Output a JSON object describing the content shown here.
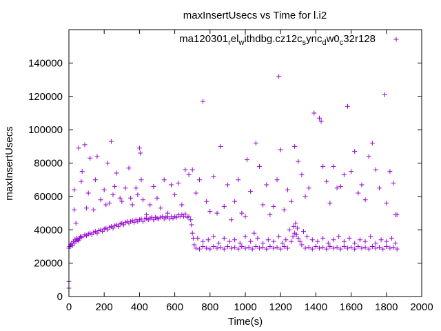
{
  "chart_data": {
    "type": "scatter",
    "title": "maxInsertUsecs vs Time for l.i2",
    "xlabel": "Time(s)",
    "ylabel": "maxInsertUsecs",
    "xlim": [
      0,
      2000
    ],
    "ylim": [
      0,
      160000
    ],
    "x_ticks": [
      0,
      200,
      400,
      600,
      800,
      1000,
      1200,
      1400,
      1600,
      1800,
      2000
    ],
    "x_tick_labels": [
      "0",
      "200",
      "400",
      "600",
      "800",
      "1000",
      "1200",
      "1400",
      "1600",
      "1800",
      "2000"
    ],
    "y_ticks": [
      0,
      20000,
      40000,
      60000,
      80000,
      100000,
      120000,
      140000
    ],
    "y_tick_labels": [
      "0",
      "20000",
      "40000",
      "60000",
      "80000",
      "100000",
      "120000",
      "140000"
    ],
    "legend": {
      "position": "top-right",
      "parts": [
        {
          "text": "ma120301",
          "sub": false
        },
        {
          "text": "r",
          "sub": true
        },
        {
          "text": "el",
          "sub": false
        },
        {
          "text": "w",
          "sub": true
        },
        {
          "text": "ithdbg.cz12c",
          "sub": false
        },
        {
          "text": "s",
          "sub": true
        },
        {
          "text": "ync",
          "sub": false
        },
        {
          "text": "d",
          "sub": true
        },
        {
          "text": "w0",
          "sub": false
        },
        {
          "text": "c",
          "sub": true
        },
        {
          "text": "32r128",
          "sub": false
        }
      ]
    },
    "series": [
      {
        "name": "ma120301_rel_withdbg.cz12c_sync_dw0_c32r128",
        "color": "#9400d3",
        "marker": "plus",
        "points": [
          [
            0,
            29000
          ],
          [
            0,
            5000
          ],
          [
            0,
            9000
          ],
          [
            5,
            30000
          ],
          [
            10,
            31000
          ],
          [
            15,
            32000
          ],
          [
            20,
            30500
          ],
          [
            25,
            33000
          ],
          [
            30,
            32000
          ],
          [
            35,
            34000
          ],
          [
            40,
            33000
          ],
          [
            45,
            35000
          ],
          [
            50,
            34000
          ],
          [
            55,
            33500
          ],
          [
            60,
            35000
          ],
          [
            65,
            36000
          ],
          [
            70,
            35500
          ],
          [
            80,
            36000
          ],
          [
            90,
            37000
          ],
          [
            100,
            36500
          ],
          [
            110,
            37500
          ],
          [
            120,
            38000
          ],
          [
            130,
            37000
          ],
          [
            140,
            38500
          ],
          [
            150,
            39000
          ],
          [
            160,
            38000
          ],
          [
            170,
            39500
          ],
          [
            180,
            40000
          ],
          [
            190,
            39000
          ],
          [
            200,
            40500
          ],
          [
            210,
            41000
          ],
          [
            220,
            40000
          ],
          [
            230,
            41500
          ],
          [
            240,
            42000
          ],
          [
            250,
            41000
          ],
          [
            260,
            42500
          ],
          [
            270,
            43000
          ],
          [
            280,
            42000
          ],
          [
            290,
            43500
          ],
          [
            300,
            44000
          ],
          [
            310,
            43000
          ],
          [
            320,
            44500
          ],
          [
            330,
            45000
          ],
          [
            340,
            44000
          ],
          [
            350,
            45000
          ],
          [
            360,
            45500
          ],
          [
            370,
            44500
          ],
          [
            380,
            46000
          ],
          [
            390,
            45000
          ],
          [
            400,
            46000
          ],
          [
            410,
            46500
          ],
          [
            420,
            45000
          ],
          [
            430,
            46500
          ],
          [
            440,
            47000
          ],
          [
            450,
            46000
          ],
          [
            460,
            47000
          ],
          [
            470,
            47500
          ],
          [
            480,
            46000
          ],
          [
            490,
            47500
          ],
          [
            500,
            47000
          ],
          [
            510,
            46500
          ],
          [
            520,
            47500
          ],
          [
            530,
            48000
          ],
          [
            540,
            46500
          ],
          [
            550,
            47500
          ],
          [
            560,
            48000
          ],
          [
            570,
            46500
          ],
          [
            580,
            48000
          ],
          [
            590,
            47000
          ],
          [
            600,
            48000
          ],
          [
            610,
            47500
          ],
          [
            620,
            49000
          ],
          [
            630,
            48000
          ],
          [
            640,
            49000
          ],
          [
            650,
            48000
          ],
          [
            660,
            49500
          ],
          [
            670,
            47500
          ],
          [
            680,
            48000
          ],
          [
            690,
            46000
          ],
          [
            695,
            43000
          ],
          [
            700,
            38000
          ],
          [
            705,
            35000
          ],
          [
            710,
            31000
          ],
          [
            30,
            64000
          ],
          [
            30,
            52000
          ],
          [
            40,
            44000
          ],
          [
            55,
            89000
          ],
          [
            70,
            69000
          ],
          [
            75,
            75000
          ],
          [
            90,
            91000
          ],
          [
            100,
            53000
          ],
          [
            110,
            62000
          ],
          [
            120,
            83000
          ],
          [
            140,
            52000
          ],
          [
            150,
            70000
          ],
          [
            160,
            84000
          ],
          [
            180,
            58000
          ],
          [
            200,
            64000
          ],
          [
            210,
            55000
          ],
          [
            220,
            80000
          ],
          [
            230,
            56000
          ],
          [
            240,
            93000
          ],
          [
            250,
            61000
          ],
          [
            260,
            66000
          ],
          [
            270,
            74000
          ],
          [
            290,
            59000
          ],
          [
            300,
            57000
          ],
          [
            320,
            65000
          ],
          [
            340,
            77000
          ],
          [
            350,
            59000
          ],
          [
            360,
            55000
          ],
          [
            380,
            65000
          ],
          [
            390,
            61000
          ],
          [
            400,
            89000
          ],
          [
            405,
            86000
          ],
          [
            410,
            70000
          ],
          [
            420,
            58000
          ],
          [
            440,
            49000
          ],
          [
            460,
            55000
          ],
          [
            480,
            66000
          ],
          [
            500,
            59000
          ],
          [
            520,
            53000
          ],
          [
            540,
            70000
          ],
          [
            560,
            50000
          ],
          [
            580,
            67000
          ],
          [
            600,
            61000
          ],
          [
            620,
            68000
          ],
          [
            640,
            55000
          ],
          [
            660,
            76000
          ],
          [
            680,
            73000
          ],
          [
            700,
            76000
          ],
          [
            720,
            62000
          ],
          [
            740,
            70000
          ],
          [
            760,
            117000
          ],
          [
            780,
            57000
          ],
          [
            800,
            51000
          ],
          [
            820,
            72000
          ],
          [
            840,
            50000
          ],
          [
            860,
            90000
          ],
          [
            880,
            54000
          ],
          [
            900,
            67000
          ],
          [
            920,
            46000
          ],
          [
            940,
            57000
          ],
          [
            960,
            70000
          ],
          [
            980,
            50000
          ],
          [
            1000,
            48000
          ],
          [
            1010,
            82000
          ],
          [
            1030,
            63000
          ],
          [
            1060,
            92000
          ],
          [
            1080,
            78000
          ],
          [
            1100,
            55000
          ],
          [
            1120,
            67000
          ],
          [
            1140,
            49000
          ],
          [
            1160,
            54000
          ],
          [
            1180,
            70000
          ],
          [
            1190,
            132000
          ],
          [
            1200,
            88000
          ],
          [
            1220,
            52000
          ],
          [
            1240,
            64000
          ],
          [
            1260,
            57000
          ],
          [
            1280,
            90000
          ],
          [
            1300,
            81000
          ],
          [
            1320,
            73000
          ],
          [
            1340,
            60000
          ],
          [
            1360,
            65000
          ],
          [
            1390,
            110000
          ],
          [
            1420,
            107000
          ],
          [
            1430,
            105000
          ],
          [
            1440,
            78000
          ],
          [
            1460,
            69000
          ],
          [
            1480,
            56000
          ],
          [
            1500,
            78000
          ],
          [
            1520,
            65000
          ],
          [
            1540,
            66000
          ],
          [
            1560,
            73000
          ],
          [
            1580,
            114000
          ],
          [
            1600,
            75000
          ],
          [
            1620,
            87000
          ],
          [
            1640,
            62000
          ],
          [
            1660,
            67000
          ],
          [
            1680,
            58000
          ],
          [
            1700,
            84000
          ],
          [
            1720,
            92000
          ],
          [
            1740,
            76000
          ],
          [
            1760,
            65000
          ],
          [
            1790,
            121000
          ],
          [
            1800,
            56000
          ],
          [
            1820,
            75000
          ],
          [
            1840,
            68000
          ],
          [
            1850,
            49000
          ],
          [
            1860,
            49000
          ],
          [
            720,
            29000
          ],
          [
            740,
            28500
          ],
          [
            760,
            30000
          ],
          [
            780,
            29000
          ],
          [
            800,
            28500
          ],
          [
            820,
            30000
          ],
          [
            840,
            29000
          ],
          [
            860,
            29500
          ],
          [
            880,
            28500
          ],
          [
            900,
            30000
          ],
          [
            920,
            29000
          ],
          [
            940,
            29500
          ],
          [
            960,
            28500
          ],
          [
            980,
            30000
          ],
          [
            1000,
            29000
          ],
          [
            1020,
            29500
          ],
          [
            1040,
            28500
          ],
          [
            1060,
            30000
          ],
          [
            1080,
            29000
          ],
          [
            1100,
            29500
          ],
          [
            1120,
            28500
          ],
          [
            1140,
            30000
          ],
          [
            1160,
            29000
          ],
          [
            1180,
            29500
          ],
          [
            1200,
            28500
          ],
          [
            1220,
            30000
          ],
          [
            1240,
            29000
          ],
          [
            1260,
            33000
          ],
          [
            1270,
            36000
          ],
          [
            1280,
            38000
          ],
          [
            1290,
            37000
          ],
          [
            1300,
            35000
          ],
          [
            1310,
            33000
          ],
          [
            1320,
            31000
          ],
          [
            1340,
            29000
          ],
          [
            1360,
            29500
          ],
          [
            1380,
            28500
          ],
          [
            1400,
            30000
          ],
          [
            1420,
            29000
          ],
          [
            1440,
            29500
          ],
          [
            1460,
            28500
          ],
          [
            1480,
            30000
          ],
          [
            1500,
            29000
          ],
          [
            1520,
            29500
          ],
          [
            1540,
            28500
          ],
          [
            1560,
            30000
          ],
          [
            1580,
            29000
          ],
          [
            1600,
            29500
          ],
          [
            1620,
            28500
          ],
          [
            1640,
            30000
          ],
          [
            1660,
            29000
          ],
          [
            1680,
            29500
          ],
          [
            1700,
            28500
          ],
          [
            1720,
            30000
          ],
          [
            1740,
            29000
          ],
          [
            1760,
            29500
          ],
          [
            1780,
            28500
          ],
          [
            1800,
            30000
          ],
          [
            1820,
            29000
          ],
          [
            1840,
            29500
          ],
          [
            1860,
            28500
          ],
          [
            730,
            35000
          ],
          [
            760,
            33000
          ],
          [
            790,
            34000
          ],
          [
            820,
            36000
          ],
          [
            850,
            32000
          ],
          [
            880,
            35000
          ],
          [
            910,
            33000
          ],
          [
            940,
            34000
          ],
          [
            970,
            32000
          ],
          [
            1000,
            36000
          ],
          [
            1030,
            33000
          ],
          [
            1050,
            38000
          ],
          [
            1070,
            35000
          ],
          [
            1100,
            32000
          ],
          [
            1130,
            34000
          ],
          [
            1160,
            33000
          ],
          [
            1190,
            36000
          ],
          [
            1210,
            32000
          ],
          [
            1230,
            34000
          ],
          [
            1250,
            40000
          ],
          [
            1275,
            42000
          ],
          [
            1285,
            44000
          ],
          [
            1295,
            41000
          ],
          [
            1330,
            39000
          ],
          [
            1350,
            36000
          ],
          [
            1380,
            34000
          ],
          [
            1410,
            33000
          ],
          [
            1440,
            35000
          ],
          [
            1470,
            32000
          ],
          [
            1500,
            34000
          ],
          [
            1530,
            36000
          ],
          [
            1560,
            33000
          ],
          [
            1590,
            35000
          ],
          [
            1620,
            32000
          ],
          [
            1650,
            34000
          ],
          [
            1680,
            33000
          ],
          [
            1710,
            36000
          ],
          [
            1740,
            32000
          ],
          [
            1770,
            34000
          ],
          [
            1800,
            33000
          ],
          [
            1830,
            35000
          ],
          [
            1850,
            32000
          ]
        ]
      }
    ]
  }
}
